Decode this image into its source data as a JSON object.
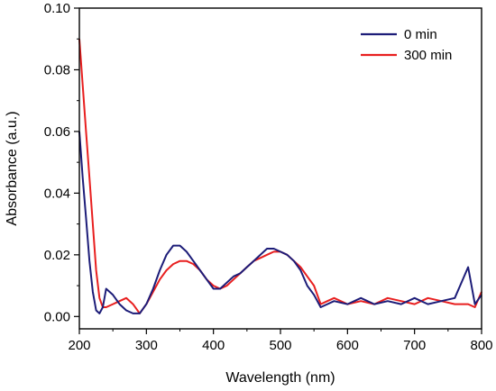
{
  "chart_data": {
    "type": "line",
    "title": "",
    "xlabel": "Wavelength (nm)",
    "ylabel": "Absorbance (a.u.)",
    "xlim": [
      200,
      800
    ],
    "ylim": [
      -0.004,
      0.1
    ],
    "xticks": [
      200,
      300,
      400,
      500,
      600,
      700,
      800
    ],
    "yticks": [
      0.0,
      0.02,
      0.04,
      0.06,
      0.08,
      0.1
    ],
    "xtick_labels": [
      "200",
      "300",
      "400",
      "500",
      "600",
      "700",
      "800"
    ],
    "ytick_labels": [
      "0.00",
      "0.02",
      "0.04",
      "0.06",
      "0.08",
      "0.10"
    ],
    "grid": false,
    "legend_position": "top-right",
    "series": [
      {
        "name": "0 min",
        "color": "#1c1c78",
        "x": [
          200,
          205,
          210,
          215,
          220,
          225,
          230,
          235,
          240,
          250,
          260,
          270,
          280,
          290,
          300,
          310,
          320,
          330,
          340,
          350,
          360,
          370,
          380,
          390,
          400,
          410,
          420,
          430,
          440,
          450,
          460,
          470,
          480,
          490,
          500,
          510,
          520,
          530,
          540,
          550,
          560,
          570,
          580,
          600,
          620,
          640,
          660,
          680,
          700,
          720,
          740,
          760,
          780,
          790,
          800
        ],
        "values": [
          0.06,
          0.045,
          0.032,
          0.018,
          0.008,
          0.002,
          0.001,
          0.003,
          0.009,
          0.007,
          0.004,
          0.002,
          0.001,
          0.001,
          0.004,
          0.009,
          0.015,
          0.02,
          0.023,
          0.023,
          0.021,
          0.018,
          0.015,
          0.012,
          0.009,
          0.009,
          0.011,
          0.013,
          0.014,
          0.016,
          0.018,
          0.02,
          0.022,
          0.022,
          0.021,
          0.02,
          0.018,
          0.015,
          0.01,
          0.007,
          0.003,
          0.004,
          0.005,
          0.004,
          0.006,
          0.004,
          0.005,
          0.004,
          0.006,
          0.004,
          0.005,
          0.006,
          0.016,
          0.004,
          0.007
        ]
      },
      {
        "name": "300 min",
        "color": "#e81f1f",
        "x": [
          200,
          205,
          210,
          215,
          220,
          225,
          230,
          235,
          240,
          250,
          260,
          270,
          280,
          290,
          300,
          310,
          320,
          330,
          340,
          350,
          360,
          370,
          380,
          390,
          400,
          410,
          420,
          430,
          440,
          450,
          460,
          470,
          480,
          490,
          500,
          510,
          520,
          530,
          540,
          550,
          560,
          570,
          580,
          600,
          620,
          640,
          660,
          680,
          700,
          720,
          740,
          760,
          780,
          790,
          800
        ],
        "values": [
          0.09,
          0.075,
          0.06,
          0.045,
          0.03,
          0.015,
          0.006,
          0.003,
          0.003,
          0.004,
          0.005,
          0.006,
          0.004,
          0.001,
          0.004,
          0.008,
          0.012,
          0.015,
          0.017,
          0.018,
          0.018,
          0.017,
          0.015,
          0.012,
          0.01,
          0.009,
          0.01,
          0.012,
          0.014,
          0.016,
          0.018,
          0.019,
          0.02,
          0.021,
          0.021,
          0.02,
          0.018,
          0.016,
          0.013,
          0.01,
          0.004,
          0.005,
          0.006,
          0.004,
          0.005,
          0.004,
          0.006,
          0.005,
          0.004,
          0.006,
          0.005,
          0.004,
          0.004,
          0.003,
          0.008
        ]
      }
    ]
  }
}
